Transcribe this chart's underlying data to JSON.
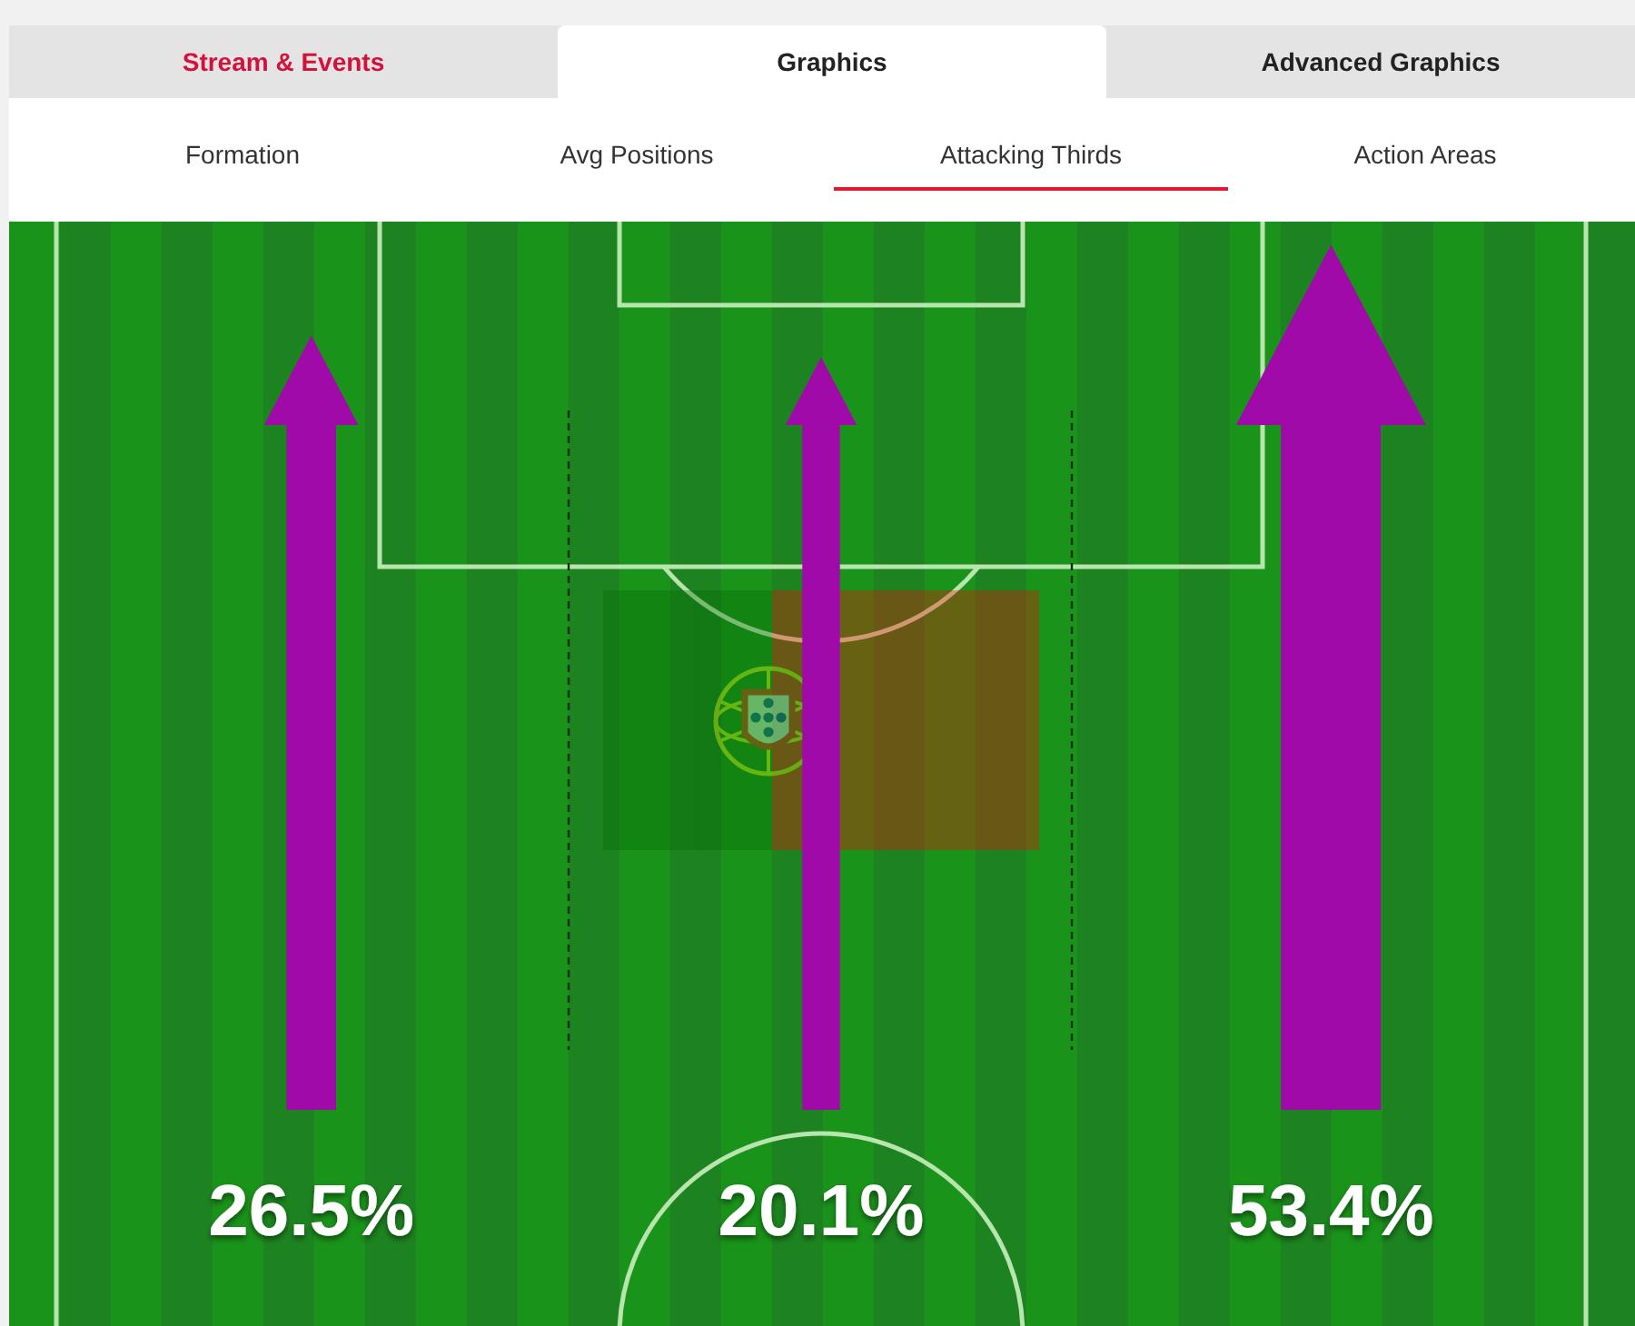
{
  "chart_data": {
    "type": "other",
    "categories": [
      null,
      null,
      null
    ],
    "values": [
      26.5,
      20.1,
      53.4
    ],
    "value_labels": [
      "26.5%",
      "20.1%",
      "53.4%"
    ],
    "color": "#a00aa9",
    "annotations": [
      "Stream & Events",
      "Graphics",
      "Advanced Graphics",
      "Formation",
      "Avg Positions",
      "Attacking Thirds",
      "Action Areas"
    ]
  }
}
